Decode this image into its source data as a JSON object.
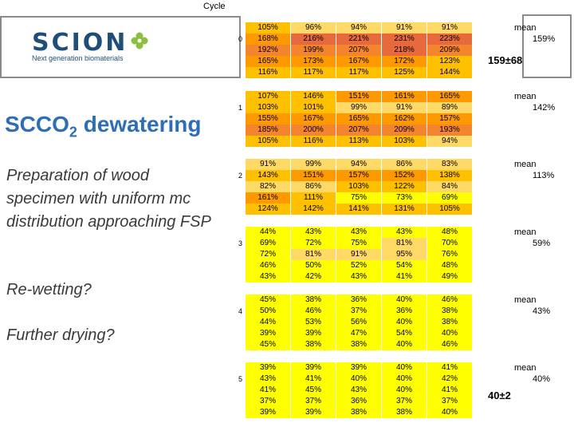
{
  "header": {
    "cycle_label": "Cycle"
  },
  "logo": {
    "name": "SCION",
    "tagline": "Next generation biomaterials"
  },
  "title": {
    "main": "SCCO",
    "sub": "2",
    "rest": " dewatering"
  },
  "side": {
    "preparation": "Preparation of wood specimen with uniform mc distribution approaching  FSP",
    "rewetting": "Re-wetting?",
    "further_drying": "Further drying?"
  },
  "colors": {
    "c1": "#ffd966",
    "c2": "#ffc000",
    "c3": "#ff9900",
    "c4": "#f4852c",
    "c5": "#e8693c",
    "yellow": "#ffff00"
  },
  "cycles": [
    {
      "label": "0",
      "mean_label": "mean",
      "mean": "159%",
      "rows": [
        [
          "105%",
          "96%",
          "94%",
          "91%",
          "91%"
        ],
        [
          "168%",
          "216%",
          "221%",
          "231%",
          "223%"
        ],
        [
          "192%",
          "199%",
          "207%",
          "218%",
          "209%"
        ],
        [
          "165%",
          "173%",
          "167%",
          "172%",
          "123%"
        ],
        [
          "116%",
          "117%",
          "117%",
          "125%",
          "144%"
        ]
      ]
    },
    {
      "label": "1",
      "mean_label": "mean",
      "mean": "142%",
      "rows": [
        [
          "107%",
          "146%",
          "151%",
          "161%",
          "165%"
        ],
        [
          "103%",
          "101%",
          "99%",
          "91%",
          "89%"
        ],
        [
          "155%",
          "167%",
          "165%",
          "162%",
          "157%"
        ],
        [
          "185%",
          "200%",
          "207%",
          "209%",
          "193%"
        ],
        [
          "105%",
          "116%",
          "113%",
          "103%",
          "94%"
        ]
      ]
    },
    {
      "label": "2",
      "mean_label": "mean",
      "mean": "113%",
      "rows": [
        [
          "91%",
          "99%",
          "94%",
          "86%",
          "83%"
        ],
        [
          "143%",
          "151%",
          "157%",
          "152%",
          "138%"
        ],
        [
          "82%",
          "86%",
          "103%",
          "122%",
          "84%"
        ],
        [
          "161%",
          "111%",
          "75%",
          "73%",
          "69%"
        ],
        [
          "124%",
          "142%",
          "141%",
          "131%",
          "105%"
        ]
      ]
    },
    {
      "label": "3",
      "mean_label": "mean",
      "mean": "59%",
      "rows": [
        [
          "44%",
          "43%",
          "43%",
          "43%",
          "48%"
        ],
        [
          "69%",
          "72%",
          "75%",
          "81%",
          "70%"
        ],
        [
          "72%",
          "81%",
          "91%",
          "95%",
          "76%"
        ],
        [
          "46%",
          "50%",
          "52%",
          "54%",
          "48%"
        ],
        [
          "43%",
          "42%",
          "43%",
          "41%",
          "49%"
        ]
      ]
    },
    {
      "label": "4",
      "mean_label": "mean",
      "mean": "43%",
      "rows": [
        [
          "45%",
          "38%",
          "36%",
          "40%",
          "46%"
        ],
        [
          "50%",
          "46%",
          "37%",
          "36%",
          "38%"
        ],
        [
          "44%",
          "53%",
          "56%",
          "40%",
          "38%"
        ],
        [
          "39%",
          "39%",
          "47%",
          "54%",
          "40%"
        ],
        [
          "45%",
          "38%",
          "38%",
          "40%",
          "46%"
        ]
      ]
    },
    {
      "label": "5",
      "mean_label": "mean",
      "mean": "40%",
      "rows": [
        [
          "39%",
          "39%",
          "39%",
          "40%",
          "41%"
        ],
        [
          "43%",
          "41%",
          "40%",
          "40%",
          "42%"
        ],
        [
          "41%",
          "45%",
          "43%",
          "40%",
          "41%"
        ],
        [
          "37%",
          "37%",
          "36%",
          "37%",
          "37%"
        ],
        [
          "39%",
          "39%",
          "38%",
          "38%",
          "40%"
        ]
      ]
    }
  ],
  "callouts": {
    "top": "159±68",
    "bottom": "40±2"
  }
}
